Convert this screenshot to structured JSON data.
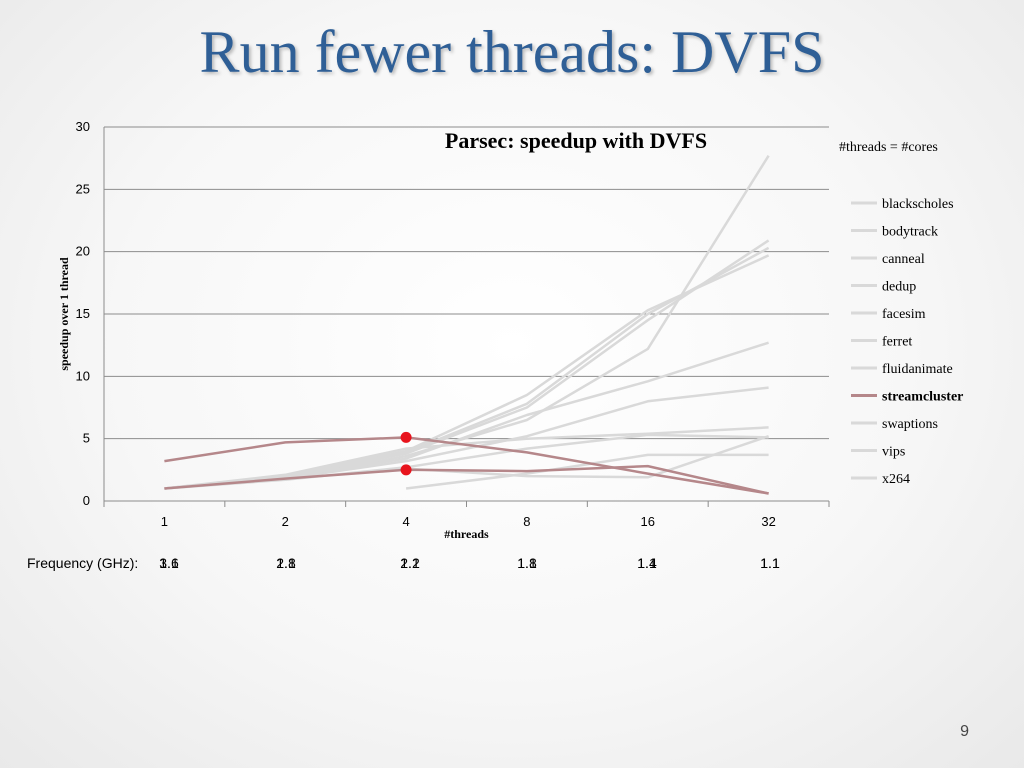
{
  "slide": {
    "title": "Run fewer threads: DVFS",
    "page_number": "9"
  },
  "frequency_row": {
    "label": "Frequency (GHz):",
    "values": [
      [
        "3.6",
        "1.1"
      ],
      [
        "2.8",
        "1.1"
      ],
      [
        "2.2",
        "1.1"
      ],
      [
        "1.8",
        "1.1"
      ],
      [
        "1.4",
        "1.1"
      ],
      [
        "1.1",
        "1.1"
      ]
    ]
  },
  "chart_data": {
    "type": "line",
    "title": "Parsec: speedup with DVFS",
    "xlabel": "#threads",
    "ylabel": "speedup over 1 thread",
    "categories": [
      "1",
      "2",
      "4",
      "8",
      "16",
      "32"
    ],
    "ylim": [
      0,
      30
    ],
    "yticks": [
      0,
      5,
      10,
      15,
      20,
      25,
      30
    ],
    "legend_note": "#threads = #cores",
    "legend_position": "right",
    "grid": "horizontal",
    "colors": {
      "background_series": "#d9d9d9",
      "highlight": "#b5878a",
      "marker": "#e8141d",
      "grid": "#8c8c8c"
    },
    "series": [
      {
        "name": "blackscholes",
        "values": [
          1,
          2.0,
          3.9,
          7.8,
          15.0,
          20.3
        ]
      },
      {
        "name": "bodytrack",
        "values": [
          1,
          1.9,
          3.6,
          6.5,
          12.2,
          27.7
        ]
      },
      {
        "name": "canneal",
        "values": [
          1,
          1.7,
          2.7,
          4.2,
          5.3,
          5.1
        ]
      },
      {
        "name": "dedup",
        "values": [
          1,
          1.8,
          3.2,
          5.2,
          8.0,
          9.1
        ]
      },
      {
        "name": "facesim",
        "values": [
          1,
          1.9,
          3.4,
          6.9,
          9.6,
          12.7
        ]
      },
      {
        "name": "ferret",
        "values": [
          1,
          2.0,
          4.0,
          8.5,
          15.3,
          19.7
        ]
      },
      {
        "name": "fluidanimate",
        "values": [
          1,
          2.0,
          3.8,
          7.5,
          14.5,
          20.9
        ]
      },
      {
        "name": "streamcluster",
        "values": [
          3.2,
          4.7,
          5.1,
          3.9,
          2.2,
          0.6
        ],
        "highlight": true
      },
      {
        "name": "swaptions",
        "values": [
          1,
          2.1,
          4.2,
          5.0,
          5.4,
          5.9
        ]
      },
      {
        "name": "vips",
        "values": [
          null,
          null,
          1.0,
          2.2,
          3.7,
          3.7
        ]
      },
      {
        "name": "x264",
        "values": [
          null,
          null,
          2.6,
          2.0,
          1.9,
          5.2
        ]
      },
      {
        "name": "",
        "values": [
          1,
          1.8,
          2.5,
          2.4,
          2.8,
          0.6
        ],
        "highlight": true
      }
    ],
    "markers": [
      {
        "x": "4",
        "y": 5.1
      },
      {
        "x": "4",
        "y": 2.5
      }
    ]
  }
}
